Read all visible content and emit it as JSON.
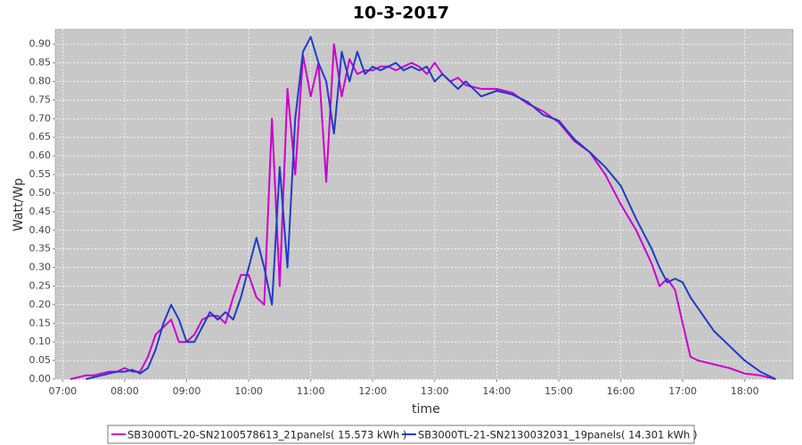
{
  "chart_data": {
    "type": "line",
    "title": "10-3-2017",
    "x_label": "time",
    "y_label": "Watt/Wp",
    "x": [
      7.125,
      7.25,
      7.375,
      7.5,
      7.625,
      7.75,
      7.875,
      8.0,
      8.125,
      8.25,
      8.375,
      8.5,
      8.625,
      8.75,
      8.875,
      9.0,
      9.125,
      9.25,
      9.375,
      9.5,
      9.625,
      9.75,
      9.875,
      10.0,
      10.125,
      10.25,
      10.375,
      10.5,
      10.625,
      10.75,
      10.875,
      11.0,
      11.125,
      11.25,
      11.375,
      11.5,
      11.625,
      11.75,
      11.875,
      12.0,
      12.125,
      12.25,
      12.375,
      12.5,
      12.625,
      12.75,
      12.875,
      13.0,
      13.125,
      13.25,
      13.375,
      13.5,
      13.75,
      14.0,
      14.25,
      14.5,
      14.75,
      15.0,
      15.25,
      15.5,
      15.75,
      16.0,
      16.25,
      16.5,
      16.625,
      16.75,
      16.875,
      17.0,
      17.125,
      17.25,
      17.5,
      17.75,
      18.0,
      18.25,
      18.5
    ],
    "series": [
      {
        "name": "SB3000TL-20-SN2100578613_21panels( 15.573 kWh )",
        "color": "#cc00cc",
        "values": [
          0.0,
          0.005,
          0.01,
          0.01,
          0.015,
          0.02,
          0.02,
          0.03,
          0.02,
          0.02,
          0.06,
          0.12,
          0.14,
          0.16,
          0.1,
          0.1,
          0.12,
          0.16,
          0.17,
          0.17,
          0.15,
          0.22,
          0.28,
          0.28,
          0.22,
          0.2,
          0.7,
          0.25,
          0.78,
          0.55,
          0.87,
          0.76,
          0.85,
          0.53,
          0.9,
          0.76,
          0.86,
          0.82,
          0.83,
          0.83,
          0.84,
          0.84,
          0.83,
          0.84,
          0.85,
          0.84,
          0.82,
          0.85,
          0.82,
          0.8,
          0.81,
          0.79,
          0.78,
          0.78,
          0.77,
          0.74,
          0.72,
          0.69,
          0.64,
          0.61,
          0.55,
          0.47,
          0.4,
          0.31,
          0.25,
          0.27,
          0.24,
          0.15,
          0.06,
          0.05,
          0.04,
          0.03,
          0.015,
          0.01,
          0.0
        ]
      },
      {
        "name": "SB3000TL-21-SN2130032031_19panels( 14.301 kWh )",
        "color": "#1e3cc8",
        "values": [
          null,
          null,
          0.0,
          0.005,
          0.01,
          0.015,
          0.02,
          0.02,
          0.025,
          0.015,
          0.03,
          0.08,
          0.15,
          0.2,
          0.16,
          0.1,
          0.1,
          0.14,
          0.18,
          0.16,
          0.18,
          0.16,
          0.22,
          0.3,
          0.38,
          0.3,
          0.2,
          0.57,
          0.3,
          0.7,
          0.88,
          0.92,
          0.85,
          0.8,
          0.66,
          0.88,
          0.8,
          0.88,
          0.82,
          0.84,
          0.83,
          0.84,
          0.85,
          0.83,
          0.84,
          0.83,
          0.84,
          0.8,
          0.82,
          0.8,
          0.78,
          0.8,
          0.76,
          0.775,
          0.765,
          0.745,
          0.71,
          0.695,
          0.645,
          0.61,
          0.57,
          0.52,
          0.43,
          0.35,
          0.3,
          0.26,
          0.27,
          0.26,
          0.22,
          0.19,
          0.13,
          0.09,
          0.05,
          0.02,
          0.0
        ]
      }
    ],
    "xlim": [
      6.88,
      18.78
    ],
    "xticks": [
      {
        "value": 7,
        "label": "07:00"
      },
      {
        "value": 8,
        "label": "08:00"
      },
      {
        "value": 9,
        "label": "09:00"
      },
      {
        "value": 10,
        "label": "10:00"
      },
      {
        "value": 11,
        "label": "11:00"
      },
      {
        "value": 12,
        "label": "12:00"
      },
      {
        "value": 13,
        "label": "13:00"
      },
      {
        "value": 14,
        "label": "14:00"
      },
      {
        "value": 15,
        "label": "15:00"
      },
      {
        "value": 16,
        "label": "16:00"
      },
      {
        "value": 17,
        "label": "17:00"
      },
      {
        "value": 18,
        "label": "18:00"
      }
    ],
    "ylim": [
      0,
      0.94
    ],
    "yticks": [
      {
        "value": 0,
        "label": "0.00"
      },
      0.05,
      {
        "value": 0.1,
        "label": "0.10"
      },
      0.15,
      {
        "value": 0.2,
        "label": "0.20"
      },
      0.25,
      {
        "value": 0.3,
        "label": "0.30"
      },
      0.35,
      {
        "value": 0.4,
        "label": "0.40"
      },
      0.45,
      {
        "value": 0.5,
        "label": "0.50"
      },
      0.55,
      {
        "value": 0.6,
        "label": "0.60"
      },
      0.65,
      {
        "value": 0.7,
        "label": "0.70"
      },
      0.75,
      {
        "value": 0.8,
        "label": "0.80"
      },
      0.85,
      {
        "value": 0.9,
        "label": "0.90"
      }
    ],
    "grid": true,
    "legend": "bottom"
  }
}
